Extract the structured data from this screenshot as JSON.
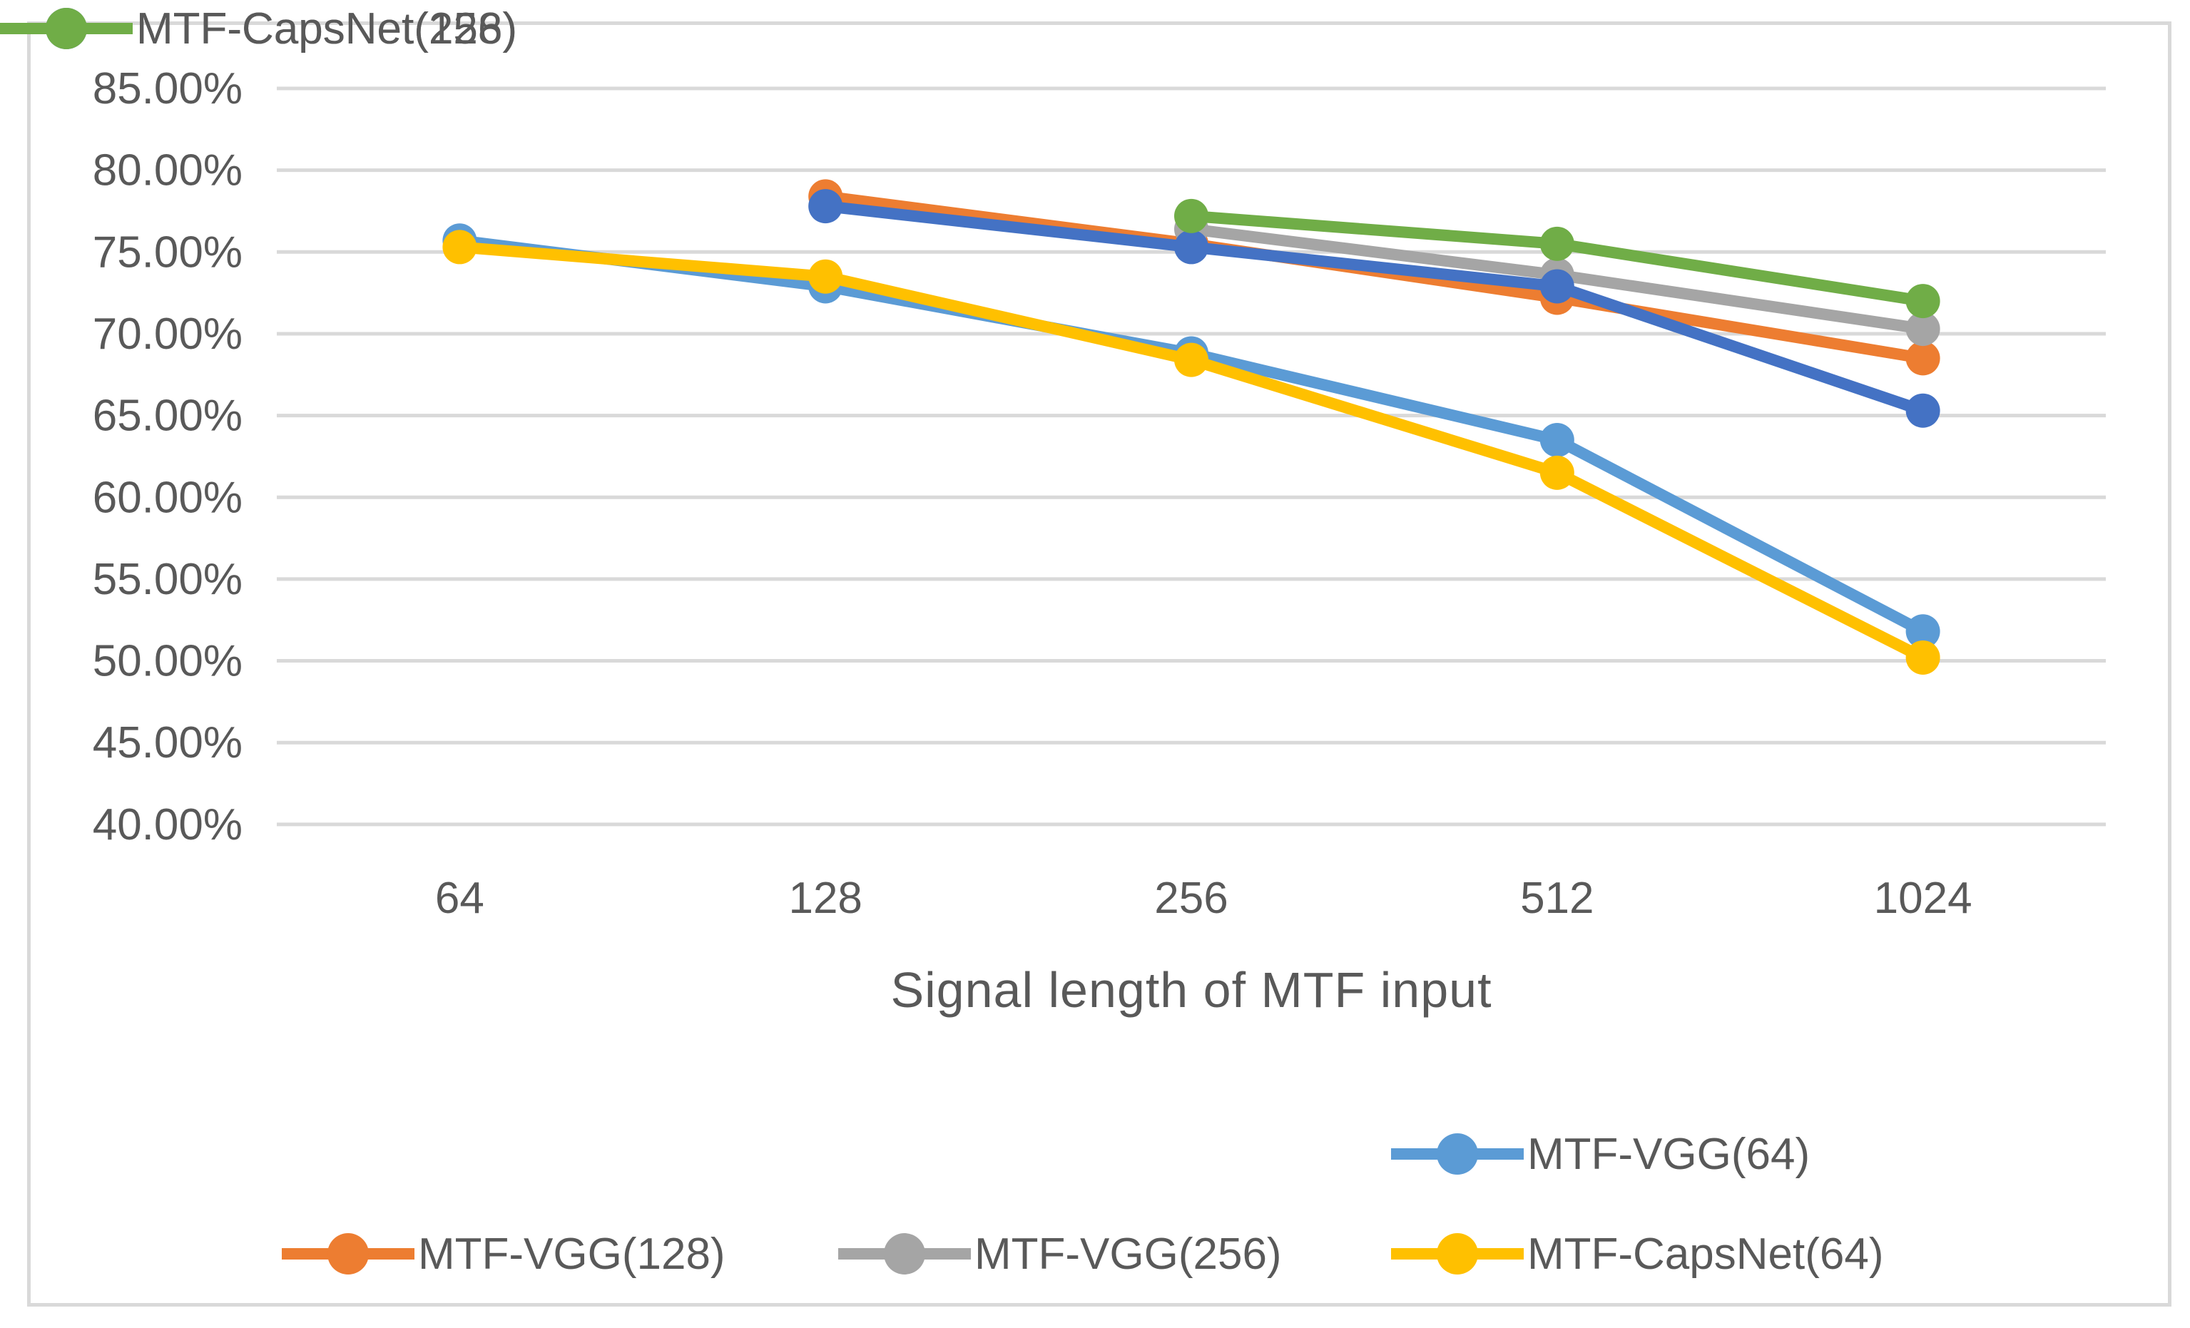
{
  "colors": {
    "background": "#ffffff",
    "frame_border": "#d9d9d9",
    "gridline": "#d9d9d9",
    "text": "#595959"
  },
  "chart_data": {
    "type": "line",
    "title": "",
    "xlabel": "Signal length of MTF input",
    "ylabel": "",
    "categories": [
      "64",
      "128",
      "256",
      "512",
      "1024"
    ],
    "yticks": [
      "85.00%",
      "80.00%",
      "75.00%",
      "70.00%",
      "65.00%",
      "60.00%",
      "55.00%",
      "50.00%",
      "45.00%",
      "40.00%"
    ],
    "ylim": [
      40,
      85
    ],
    "grid": "horizontal",
    "legend_position": "bottom",
    "marker": "circle",
    "series": [
      {
        "name": "MTF-VGG(64)",
        "color": "#5B9BD5",
        "values": [
          75.7,
          72.9,
          68.8,
          63.5,
          51.8
        ]
      },
      {
        "name": "MTF-VGG(128)",
        "color": "#ED7D31",
        "values": [
          null,
          78.4,
          75.5,
          72.2,
          68.5
        ]
      },
      {
        "name": "MTF-VGG(256)",
        "color": "#A5A5A5",
        "values": [
          null,
          null,
          76.4,
          73.6,
          70.3
        ]
      },
      {
        "name": "MTF-CapsNet(64)",
        "color": "#FFC000",
        "values": [
          75.3,
          73.5,
          68.4,
          61.5,
          50.2
        ]
      },
      {
        "name": "MTF-CapsNet(128)",
        "color": "#4472C4",
        "values": [
          null,
          77.8,
          75.3,
          72.9,
          65.3
        ]
      },
      {
        "name": "MTF-CapsNet(256)",
        "color": "#70AD47",
        "values": [
          null,
          null,
          77.2,
          75.5,
          72.0
        ]
      }
    ]
  }
}
